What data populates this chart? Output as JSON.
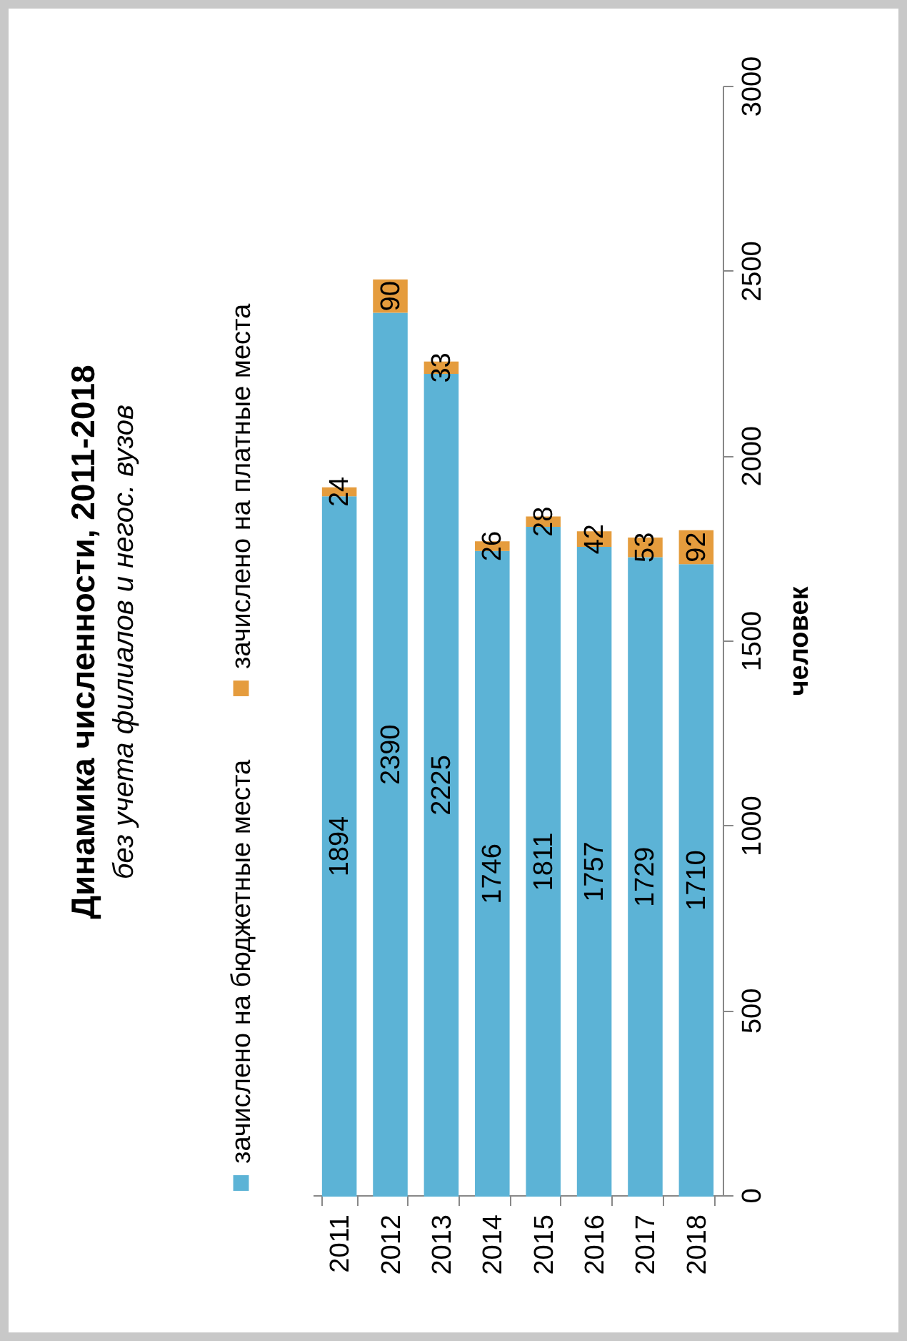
{
  "chart_data": {
    "type": "bar",
    "stacked": true,
    "title": "Динамика численности, 2011-2018",
    "subtitle": "без учета филиалов и негос. вузов",
    "ylabel": "человек",
    "categories": [
      "2011",
      "2012",
      "2013",
      "2014",
      "2015",
      "2016",
      "2017",
      "2018"
    ],
    "series": [
      {
        "name": "зачислено на бюджетные места",
        "color": "#5cb3d6",
        "values": [
          1894,
          2390,
          2225,
          1746,
          1811,
          1757,
          1729,
          1710
        ]
      },
      {
        "name": "зачислено на платные места",
        "color": "#e59c3d",
        "values": [
          24,
          90,
          33,
          26,
          28,
          42,
          53,
          92
        ]
      }
    ],
    "ylim": [
      0,
      3000
    ],
    "yticks": [
      0,
      500,
      1000,
      1500,
      2000,
      2500,
      3000
    ],
    "grid": false,
    "legend": "left",
    "data_labels": true
  }
}
